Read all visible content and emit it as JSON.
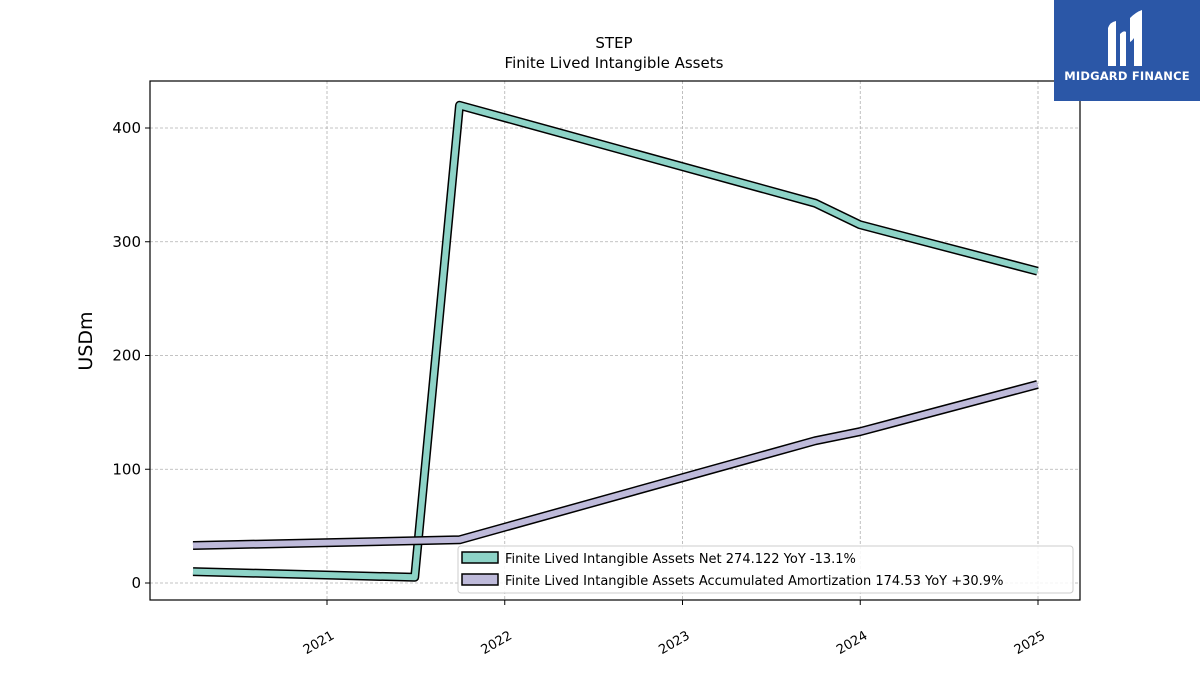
{
  "logo": {
    "text": "MIDGARD FINANCE"
  },
  "colors": {
    "net": "#8dd3c7",
    "amort": "#bebada",
    "outline": "#000000",
    "grid": "#b0b0b0",
    "brand": "#2b57a7"
  },
  "chart_data": {
    "type": "line",
    "title": "STEP",
    "subtitle": "Finite Lived Intangible Assets",
    "ylabel": "USDm",
    "xlabel": "",
    "x_ticks": [
      "2021",
      "2022",
      "2023",
      "2024",
      "2025"
    ],
    "y_ticks": [
      "0",
      "100",
      "200",
      "300",
      "400"
    ],
    "ylim": [
      -15,
      441
    ],
    "grid": true,
    "legend_position": "lower-right",
    "series": [
      {
        "name": "Finite Lived Intangible Assets Net",
        "legend": "Finite Lived Intangible Assets Net  274.122 YoY -13.1%",
        "points": [
          {
            "x": "2020-03-31",
            "y": 10.0
          },
          {
            "x": "2021-06-30",
            "y": 5.0
          },
          {
            "x": "2021-09-30",
            "y": 420.0
          },
          {
            "x": "2023-09-30",
            "y": 334.0
          },
          {
            "x": "2023-12-31",
            "y": 315.0
          },
          {
            "x": "2024-12-31",
            "y": 274.122
          }
        ]
      },
      {
        "name": "Finite Lived Intangible Assets Accumulated Amortization",
        "legend": "Finite Lived Intangible Assets Accumulated Amortization  174.53 YoY +30.9%",
        "points": [
          {
            "x": "2020-03-31",
            "y": 33.0
          },
          {
            "x": "2021-09-30",
            "y": 38.0
          },
          {
            "x": "2023-09-30",
            "y": 125.0
          },
          {
            "x": "2023-12-31",
            "y": 133.0
          },
          {
            "x": "2024-12-31",
            "y": 174.53
          }
        ]
      }
    ]
  }
}
